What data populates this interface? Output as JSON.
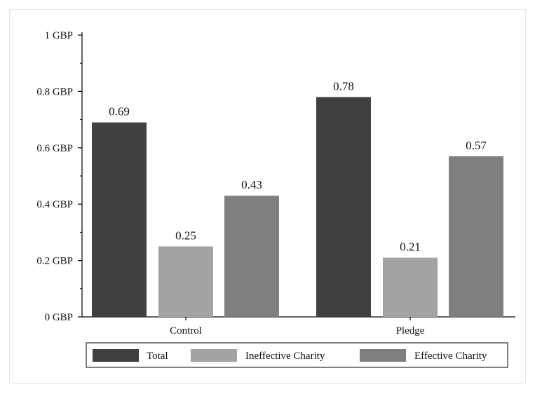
{
  "chart_data": {
    "type": "bar",
    "title": "",
    "xlabel": "",
    "ylabel": "",
    "ylim": [
      0,
      1
    ],
    "yticks": [
      0,
      0.2,
      0.4,
      0.6,
      0.8,
      1
    ],
    "ytick_labels": [
      "0 GBP",
      "0.2 GBP",
      "0.4 GBP",
      "0.6 GBP",
      "0.8 GBP",
      "1 GBP"
    ],
    "categories": [
      "Control",
      "Pledge"
    ],
    "series": [
      {
        "name": "Total",
        "color": "#404040",
        "values": [
          0.69,
          0.78
        ],
        "labels": [
          "0.69",
          "0.78"
        ]
      },
      {
        "name": "Ineffective Charity",
        "color": "#a3a3a3",
        "values": [
          0.25,
          0.21
        ],
        "labels": [
          "0.25",
          "0.21"
        ]
      },
      {
        "name": "Effective Charity",
        "color": "#7f7f7f",
        "values": [
          0.43,
          0.57
        ],
        "labels": [
          "0.43",
          "0.57"
        ]
      }
    ],
    "legend_position": "bottom",
    "grid": false
  }
}
